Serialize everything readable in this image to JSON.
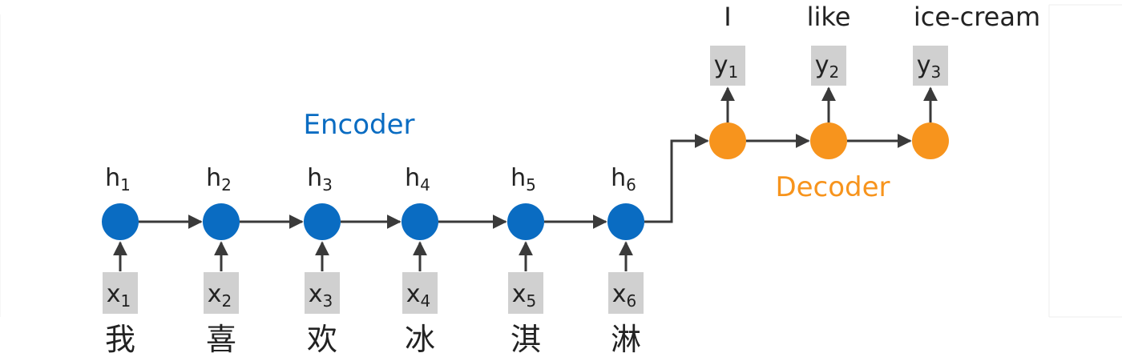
{
  "encoder": {
    "title": "Encoder",
    "color": "#0a6cc2",
    "steps": [
      {
        "h": "h",
        "h_sub": "1",
        "x": "x",
        "x_sub": "1",
        "word": "我"
      },
      {
        "h": "h",
        "h_sub": "2",
        "x": "x",
        "x_sub": "2",
        "word": "喜"
      },
      {
        "h": "h",
        "h_sub": "3",
        "x": "x",
        "x_sub": "3",
        "word": "欢"
      },
      {
        "h": "h",
        "h_sub": "4",
        "x": "x",
        "x_sub": "4",
        "word": "冰"
      },
      {
        "h": "h",
        "h_sub": "5",
        "x": "x",
        "x_sub": "5",
        "word": "淇"
      },
      {
        "h": "h",
        "h_sub": "6",
        "x": "x",
        "x_sub": "6",
        "word": "淋"
      }
    ]
  },
  "decoder": {
    "title": "Decoder",
    "color": "#f7941d",
    "steps": [
      {
        "y": "y",
        "y_sub": "1",
        "word": "I"
      },
      {
        "y": "y",
        "y_sub": "2",
        "word": "like"
      },
      {
        "y": "y",
        "y_sub": "3",
        "word": "ice-cream"
      }
    ]
  },
  "colors": {
    "token_box": "#d0d0d0",
    "arrow": "#3a3a3a",
    "text": "#222222"
  }
}
